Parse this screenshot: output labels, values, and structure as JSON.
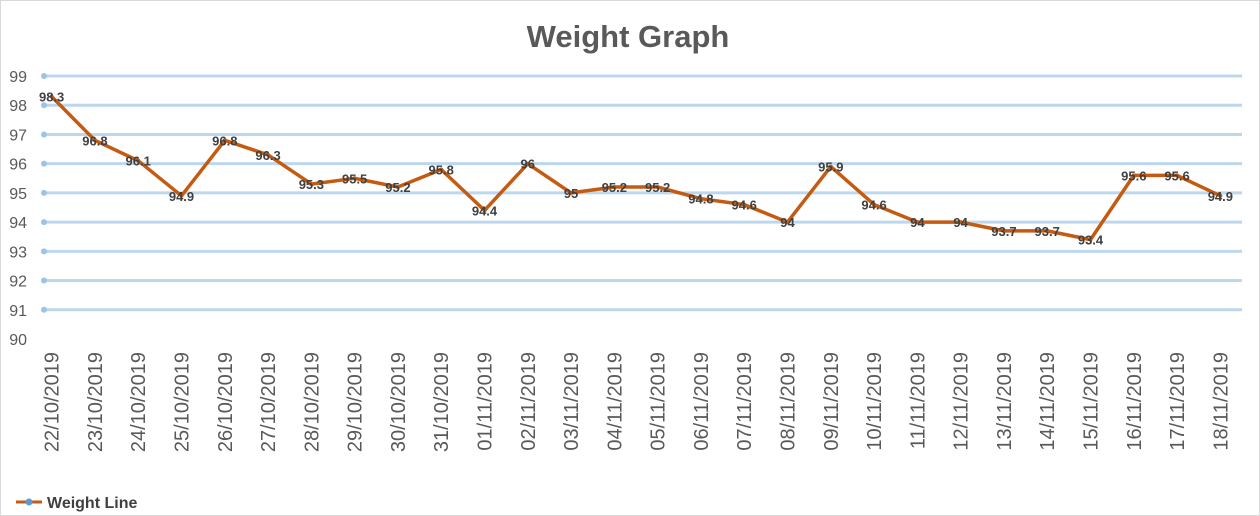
{
  "chart_data": {
    "type": "line",
    "title": "Weight Graph",
    "xlabel": "",
    "ylabel": "",
    "ylim": [
      90,
      99
    ],
    "yticks": [
      90,
      91,
      92,
      93,
      94,
      95,
      96,
      97,
      98,
      99
    ],
    "grid": true,
    "legend_position": "bottom-left",
    "categories": [
      "22/10/2019",
      "23/10/2019",
      "24/10/2019",
      "25/10/2019",
      "26/10/2019",
      "27/10/2019",
      "28/10/2019",
      "29/10/2019",
      "30/10/2019",
      "31/10/2019",
      "01/11/2019",
      "02/11/2019",
      "03/11/2019",
      "04/11/2019",
      "05/11/2019",
      "06/11/2019",
      "07/11/2019",
      "08/11/2019",
      "09/11/2019",
      "10/11/2019",
      "11/11/2019",
      "12/11/2019",
      "13/11/2019",
      "14/11/2019",
      "15/11/2019",
      "16/11/2019",
      "17/11/2019",
      "18/11/2019"
    ],
    "series": [
      {
        "name": "Weight Line",
        "color": "#C55A11",
        "values": [
          98.3,
          96.8,
          96.1,
          94.9,
          96.8,
          96.3,
          95.3,
          95.5,
          95.2,
          95.8,
          94.4,
          96,
          95,
          95.2,
          95.2,
          94.8,
          94.6,
          94,
          95.9,
          94.6,
          94,
          94,
          93.7,
          93.7,
          93.4,
          95.6,
          95.6,
          94.9
        ]
      }
    ],
    "colors": {
      "title": "#595959",
      "tick": "#595959",
      "gridline": "#BDD7EE",
      "gridmarker": "#9DC3E6",
      "label": "#404040",
      "legend_marker": "#5B9BD5"
    }
  }
}
